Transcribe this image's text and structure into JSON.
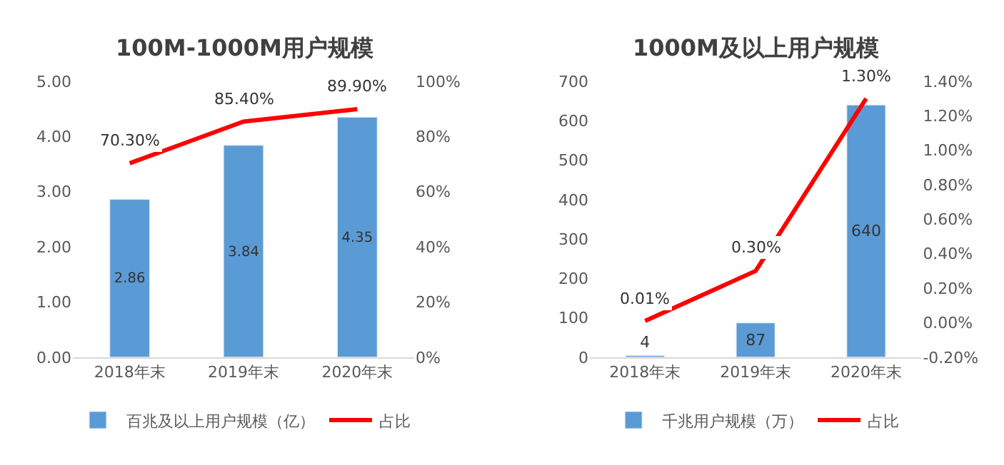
{
  "chart_data": [
    {
      "type": "bar",
      "title": "100M-1000M用户规模",
      "categories": [
        "2018年末",
        "2019年末",
        "2020年末"
      ],
      "series": [
        {
          "name": "百兆及以上用户规模（亿）",
          "color": "#5b9bd5",
          "values": [
            2.86,
            3.84,
            4.35
          ],
          "value_labels": [
            "2.86",
            "3.84",
            "4.35"
          ]
        },
        {
          "name": "占比",
          "type": "line",
          "axis": "y2",
          "color": "#ff0000",
          "values": [
            70.3,
            85.4,
            89.9
          ],
          "value_labels": [
            "70.30%",
            "85.40%",
            "89.90%"
          ]
        }
      ],
      "ylim": [
        0,
        5
      ],
      "yticks": [
        {
          "value": 0,
          "label": "0.00"
        },
        {
          "value": 1,
          "label": "1.00"
        },
        {
          "value": 2,
          "label": "2.00"
        },
        {
          "value": 3,
          "label": "3.00"
        },
        {
          "value": 4,
          "label": "4.00"
        },
        {
          "value": 5,
          "label": "5.00"
        }
      ],
      "y2lim": [
        0,
        100
      ],
      "y2ticks": [
        {
          "value": 0,
          "label": "0%"
        },
        {
          "value": 20,
          "label": "20%"
        },
        {
          "value": 40,
          "label": "40%"
        },
        {
          "value": 60,
          "label": "60%"
        },
        {
          "value": 80,
          "label": "80%"
        },
        {
          "value": 100,
          "label": "100%"
        }
      ],
      "legend": "bottom"
    },
    {
      "type": "bar",
      "title": "1000M及以上用户规模",
      "categories": [
        "2018年末",
        "2019年末",
        "2020年末"
      ],
      "series": [
        {
          "name": "千兆用户规模（万）",
          "color": "#5b9bd5",
          "values": [
            4,
            87,
            640
          ],
          "value_labels": [
            "4",
            "87",
            "640"
          ]
        },
        {
          "name": "占比",
          "type": "line",
          "axis": "y2",
          "color": "#ff0000",
          "values": [
            0.01,
            0.3,
            1.3
          ],
          "value_labels": [
            "0.01%",
            "0.30%",
            "1.30%"
          ]
        }
      ],
      "ylim": [
        0,
        700
      ],
      "yticks": [
        0,
        100,
        200,
        300,
        400,
        500,
        600,
        700
      ],
      "y2lim": [
        -0.2,
        1.4
      ],
      "y2ticks": [
        {
          "value": -0.2,
          "label": "-0.20%"
        },
        {
          "value": 0,
          "label": "0.00%"
        },
        {
          "value": 0.2,
          "label": "0.20%"
        },
        {
          "value": 0.4,
          "label": "0.40%"
        },
        {
          "value": 0.6,
          "label": "0.60%"
        },
        {
          "value": 0.8,
          "label": "0.80%"
        },
        {
          "value": 1.0,
          "label": "1.00%"
        },
        {
          "value": 1.2,
          "label": "1.20%"
        },
        {
          "value": 1.4,
          "label": "1.40%"
        }
      ],
      "legend": "bottom"
    }
  ]
}
